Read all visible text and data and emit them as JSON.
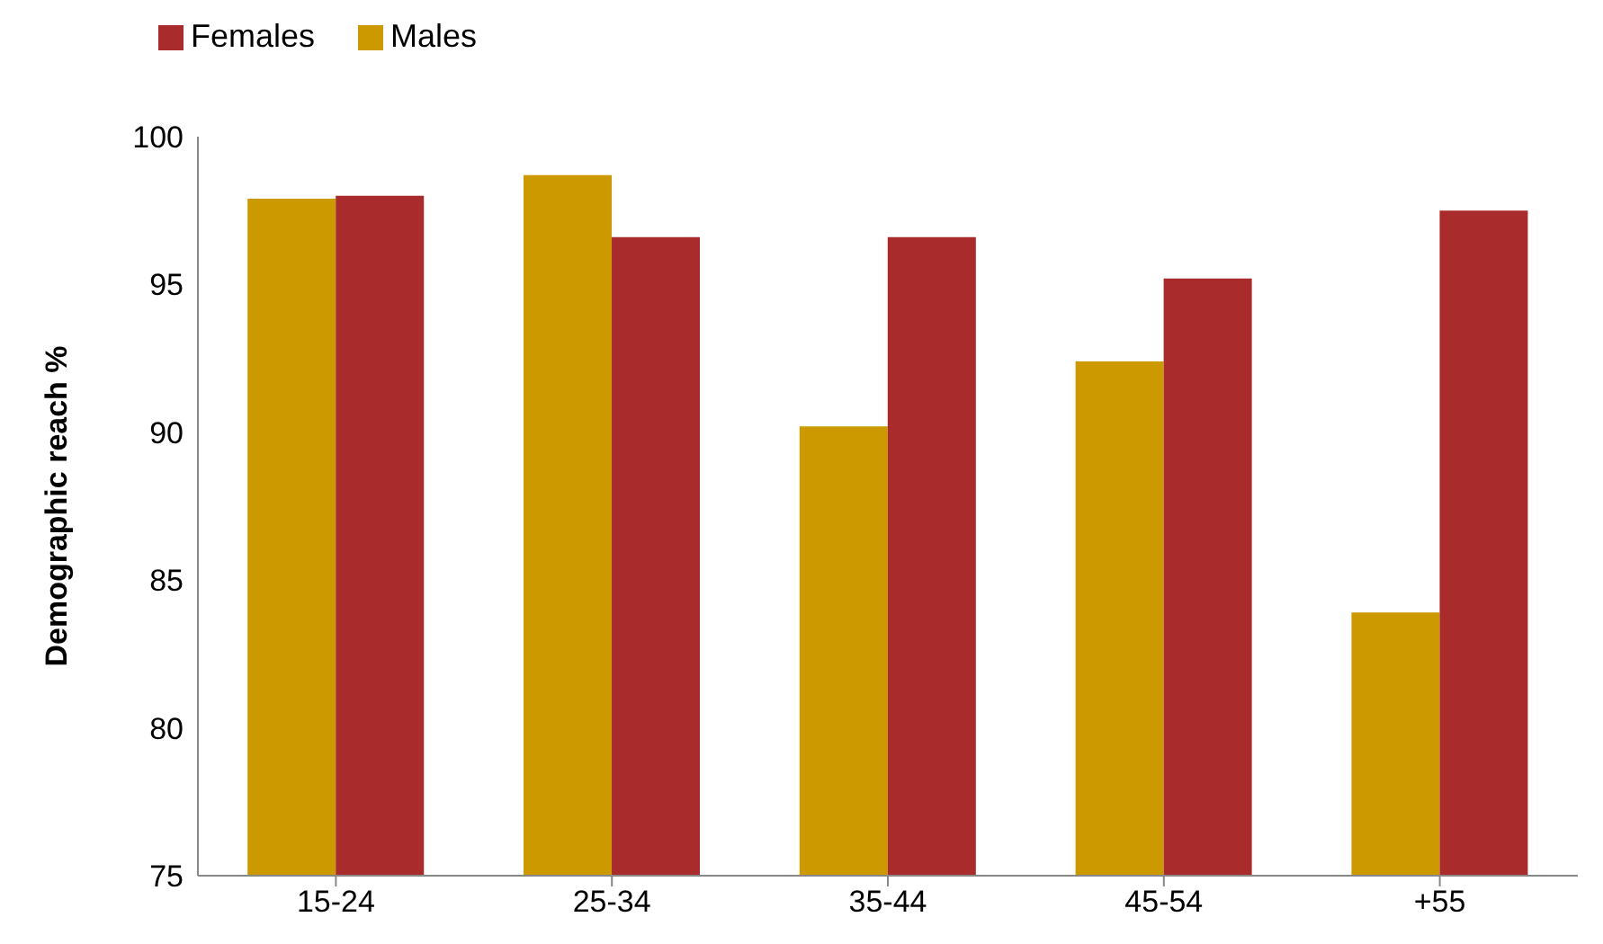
{
  "chart_data": {
    "type": "bar",
    "ylabel": "Demographic reach %",
    "categories": [
      "15-24",
      "25-34",
      "35-44",
      "45-54",
      "+55"
    ],
    "series": [
      {
        "name": "Males",
        "color": "#cc9900",
        "values": [
          97.9,
          98.7,
          90.2,
          92.4,
          83.9
        ]
      },
      {
        "name": "Females",
        "color": "#a92b2b",
        "values": [
          98.0,
          96.6,
          96.6,
          95.2,
          97.5
        ]
      }
    ],
    "ylim": [
      75,
      100
    ],
    "yticks": [
      75,
      80,
      85,
      90,
      95,
      100
    ],
    "grid": false,
    "legend": "top left"
  }
}
